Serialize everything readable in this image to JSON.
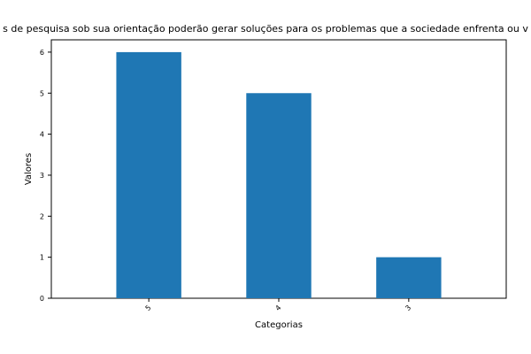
{
  "chart_data": {
    "type": "bar",
    "title": "s de pesquisa sob sua orientação poderão gerar soluções para os problemas que a sociedade enfrenta ou v",
    "xlabel": "Categorias",
    "ylabel": "Valores",
    "categories": [
      "5",
      "4",
      "3"
    ],
    "values": [
      6,
      5,
      1
    ],
    "yticks": [
      "0",
      "1",
      "2",
      "3",
      "4",
      "5",
      "6"
    ],
    "ylim": [
      0,
      6.3
    ],
    "bar_color": "#1f77b4",
    "grid": false,
    "legend": "none"
  }
}
